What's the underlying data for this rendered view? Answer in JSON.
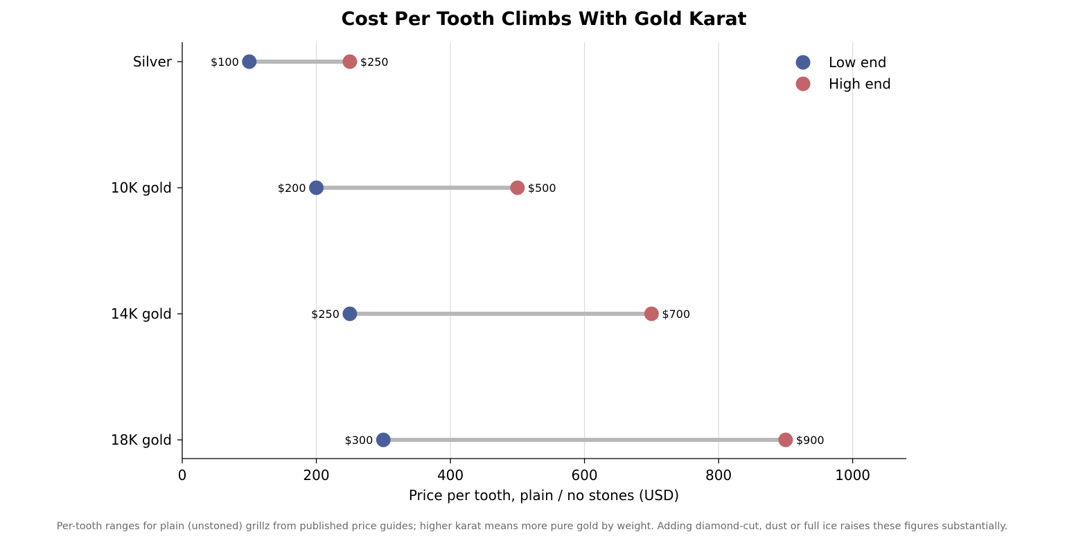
{
  "chart_data": {
    "type": "dumbbell",
    "title": "Cost Per Tooth Climbs With Gold Karat",
    "xlabel": "Price per tooth, plain / no stones (USD)",
    "ylabel": "",
    "xlim": [
      0,
      1080
    ],
    "xticks": [
      0,
      200,
      400,
      600,
      800,
      1000
    ],
    "xtick_labels": [
      "0",
      "200",
      "400",
      "600",
      "800",
      "1000"
    ],
    "grid": "vertical",
    "legend_position": "top-right",
    "categories": [
      "Silver",
      "10K gold",
      "14K gold",
      "18K gold"
    ],
    "series": [
      {
        "name": "Low end",
        "color": "#4a5f9a",
        "values": [
          100,
          200,
          250,
          300
        ],
        "labels": [
          "$100",
          "$200",
          "$250",
          "$300"
        ]
      },
      {
        "name": "High end",
        "color": "#c2646a",
        "values": [
          250,
          500,
          700,
          900
        ],
        "labels": [
          "$250",
          "$500",
          "$700",
          "$900"
        ]
      }
    ],
    "connector_color": "#b8b8b8",
    "gridline_color": "#dddddd",
    "footnote": "Per-tooth ranges for plain (unstoned) grillz from published price guides; higher karat means more pure gold by weight. Adding diamond-cut, dust or full ice raises these figures substantially."
  }
}
